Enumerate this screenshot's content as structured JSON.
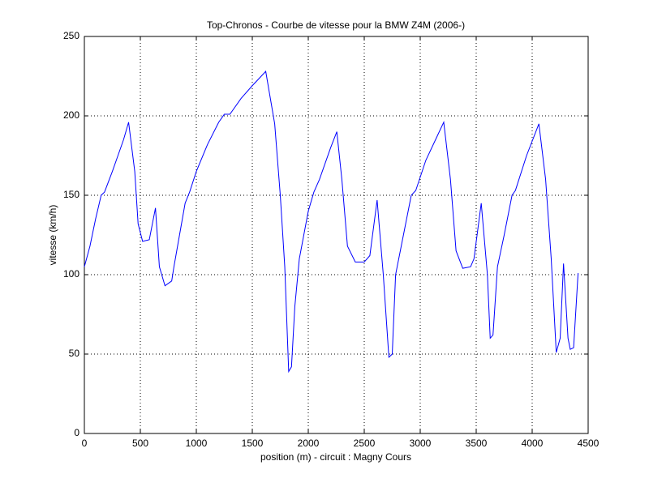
{
  "chart_data": {
    "type": "line",
    "title": "Top-Chronos - Courbe de vitesse pour la BMW Z4M (2006-)",
    "xlabel": "position (m) - circuit : Magny Cours",
    "ylabel": "vitesse (km/h)",
    "x": [
      0,
      50,
      100,
      150,
      180,
      250,
      300,
      350,
      395,
      450,
      480,
      520,
      580,
      635,
      670,
      720,
      780,
      800,
      850,
      900,
      940,
      1000,
      1100,
      1200,
      1250,
      1300,
      1400,
      1500,
      1620,
      1700,
      1750,
      1790,
      1825,
      1850,
      1880,
      1920,
      2000,
      2050,
      2100,
      2200,
      2255,
      2300,
      2350,
      2420,
      2500,
      2550,
      2615,
      2670,
      2720,
      2750,
      2780,
      2850,
      2920,
      2960,
      3050,
      3150,
      3210,
      3270,
      3320,
      3380,
      3450,
      3480,
      3545,
      3600,
      3625,
      3650,
      3690,
      3750,
      3820,
      3850,
      3950,
      4060,
      4120,
      4170,
      4215,
      4250,
      4280,
      4320,
      4340,
      4370,
      4410
    ],
    "series": [
      {
        "name": "vitesse",
        "color": "#0000ff",
        "values": [
          105,
          118,
          135,
          150,
          152,
          165,
          175,
          185,
          196,
          165,
          132,
          121,
          122,
          142,
          105,
          93,
          96,
          105,
          125,
          145,
          152,
          165,
          182,
          196,
          201,
          201,
          211,
          219,
          228,
          195,
          150,
          105,
          39,
          42,
          80,
          110,
          140,
          152,
          160,
          180,
          190,
          160,
          118,
          108,
          108,
          112,
          147,
          100,
          48,
          50,
          100,
          125,
          150,
          153,
          172,
          187,
          196,
          160,
          115,
          104,
          105,
          110,
          145,
          100,
          60,
          62,
          105,
          125,
          150,
          153,
          175,
          195,
          160,
          110,
          51,
          60,
          107,
          60,
          53,
          54,
          101
        ]
      }
    ],
    "xlim": [
      0,
      4500
    ],
    "ylim": [
      0,
      250
    ],
    "xticks": [
      0,
      500,
      1000,
      1500,
      2000,
      2500,
      3000,
      3500,
      4000,
      4500
    ],
    "yticks": [
      0,
      50,
      100,
      150,
      200,
      250
    ],
    "grid": true
  }
}
